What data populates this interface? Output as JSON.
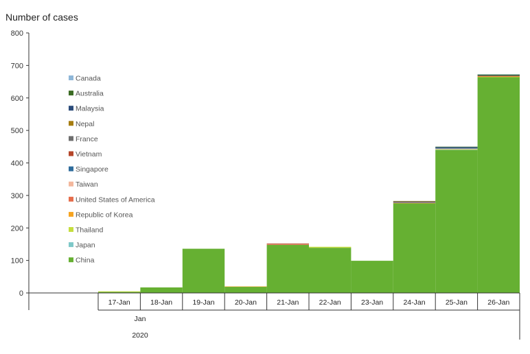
{
  "chart_data": {
    "type": "bar",
    "stacked": true,
    "title": "Number of cases",
    "xlabel": "",
    "ylabel": "",
    "ylim": [
      0,
      800
    ],
    "yticks": [
      0,
      100,
      200,
      300,
      400,
      500,
      600,
      700,
      800
    ],
    "grid": false,
    "legend_position": "inside-left",
    "categories": [
      "17-Jan",
      "18-Jan",
      "19-Jan",
      "20-Jan",
      "21-Jan",
      "22-Jan",
      "23-Jan",
      "24-Jan",
      "25-Jan",
      "26-Jan"
    ],
    "x_group_labels": {
      "month": "Jan",
      "year": "2020"
    },
    "series": [
      {
        "name": "China",
        "color": "#66b032",
        "values": [
          3,
          17,
          136,
          19,
          148,
          139,
          99,
          276,
          440,
          664
        ]
      },
      {
        "name": "Japan",
        "color": "#7ec8c8",
        "values": [
          0,
          0,
          0,
          0,
          0,
          0,
          0,
          0,
          1,
          0
        ]
      },
      {
        "name": "Thailand",
        "color": "#c5de3f",
        "values": [
          2,
          0,
          0,
          0,
          0,
          3,
          0,
          0,
          1,
          1
        ]
      },
      {
        "name": "Republic of Korea",
        "color": "#f6a421",
        "values": [
          0,
          0,
          0,
          1,
          0,
          0,
          0,
          1,
          0,
          1
        ]
      },
      {
        "name": "United States of America",
        "color": "#e56d4b",
        "values": [
          0,
          0,
          0,
          0,
          1,
          0,
          0,
          1,
          0,
          2
        ]
      },
      {
        "name": "Taiwan",
        "color": "#f3b79c",
        "values": [
          0,
          0,
          0,
          0,
          1,
          0,
          0,
          0,
          2,
          0
        ]
      },
      {
        "name": "Singapore",
        "color": "#2f6c9c",
        "values": [
          0,
          0,
          0,
          0,
          0,
          0,
          0,
          1,
          2,
          0
        ]
      },
      {
        "name": "Vietnam",
        "color": "#b5462a",
        "values": [
          0,
          0,
          0,
          0,
          2,
          0,
          0,
          0,
          0,
          0
        ]
      },
      {
        "name": "France",
        "color": "#6e6e6e",
        "values": [
          0,
          0,
          0,
          0,
          0,
          0,
          0,
          3,
          0,
          0
        ]
      },
      {
        "name": "Nepal",
        "color": "#a67d10",
        "values": [
          0,
          0,
          0,
          0,
          0,
          0,
          0,
          1,
          0,
          0
        ]
      },
      {
        "name": "Malaysia",
        "color": "#2b4b7a",
        "values": [
          0,
          0,
          0,
          0,
          0,
          0,
          0,
          0,
          3,
          1
        ]
      },
      {
        "name": "Australia",
        "color": "#3b6b24",
        "values": [
          0,
          0,
          0,
          0,
          0,
          0,
          0,
          0,
          1,
          3
        ]
      },
      {
        "name": "Canada",
        "color": "#8fb7d8",
        "values": [
          0,
          0,
          0,
          0,
          0,
          0,
          0,
          0,
          0,
          1
        ]
      }
    ]
  }
}
